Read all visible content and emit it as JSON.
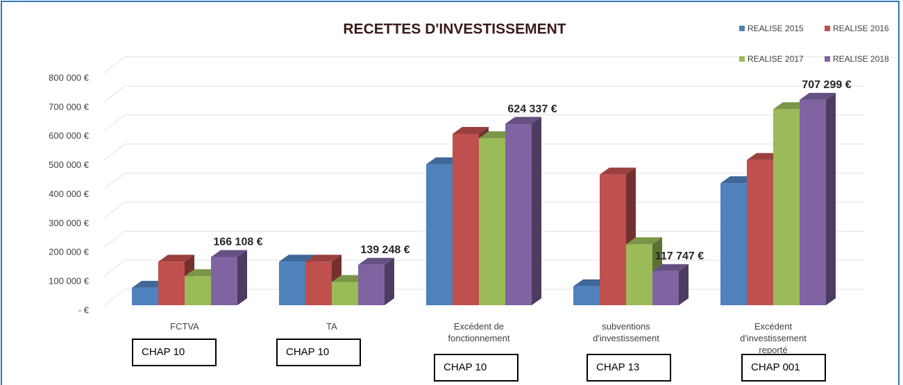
{
  "chart_data": {
    "type": "bar3d",
    "title": "RECETTES D'INVESTISSEMENT",
    "categories": [
      "FCTVA",
      "TA",
      "Excédent de fonctionnement",
      "subventions d'investissement",
      "Excédent  d'investissement reporté"
    ],
    "chapters": [
      "CHAP 10",
      "CHAP 10",
      "CHAP 10",
      "CHAP 13",
      "CHAP 001"
    ],
    "series": [
      {
        "name": "REALISE 2015",
        "color": "#4f81bd",
        "values": [
          60000,
          150000,
          485000,
          65000,
          420000
        ]
      },
      {
        "name": "REALISE 2016",
        "color": "#c0504d",
        "values": [
          150000,
          150000,
          590000,
          450000,
          500000
        ]
      },
      {
        "name": "REALISE 2017",
        "color": "#9bbb59",
        "values": [
          100000,
          80000,
          575000,
          210000,
          675000
        ]
      },
      {
        "name": "REALISE 2018",
        "color": "#8064a2",
        "values": [
          166108,
          139248,
          624337,
          117747,
          707299
        ],
        "value_labels": [
          "166 108 €",
          "139 248 €",
          "624 337 €",
          "117 747 €",
          "707 299 €"
        ]
      }
    ],
    "ylim": [
      0,
      800000
    ],
    "yticks": [
      {
        "value": 0,
        "label": "-  €"
      },
      {
        "value": 100000,
        "label": "100 000 €"
      },
      {
        "value": 200000,
        "label": "200 000 €"
      },
      {
        "value": 300000,
        "label": "300 000 €"
      },
      {
        "value": 400000,
        "label": "400 000 €"
      },
      {
        "value": 500000,
        "label": "500 000 €"
      },
      {
        "value": 600000,
        "label": "600 000 €"
      },
      {
        "value": 700000,
        "label": "700 000 €"
      },
      {
        "value": 800000,
        "label": "800 000 €"
      }
    ],
    "grid": true,
    "legend": "top-right"
  }
}
